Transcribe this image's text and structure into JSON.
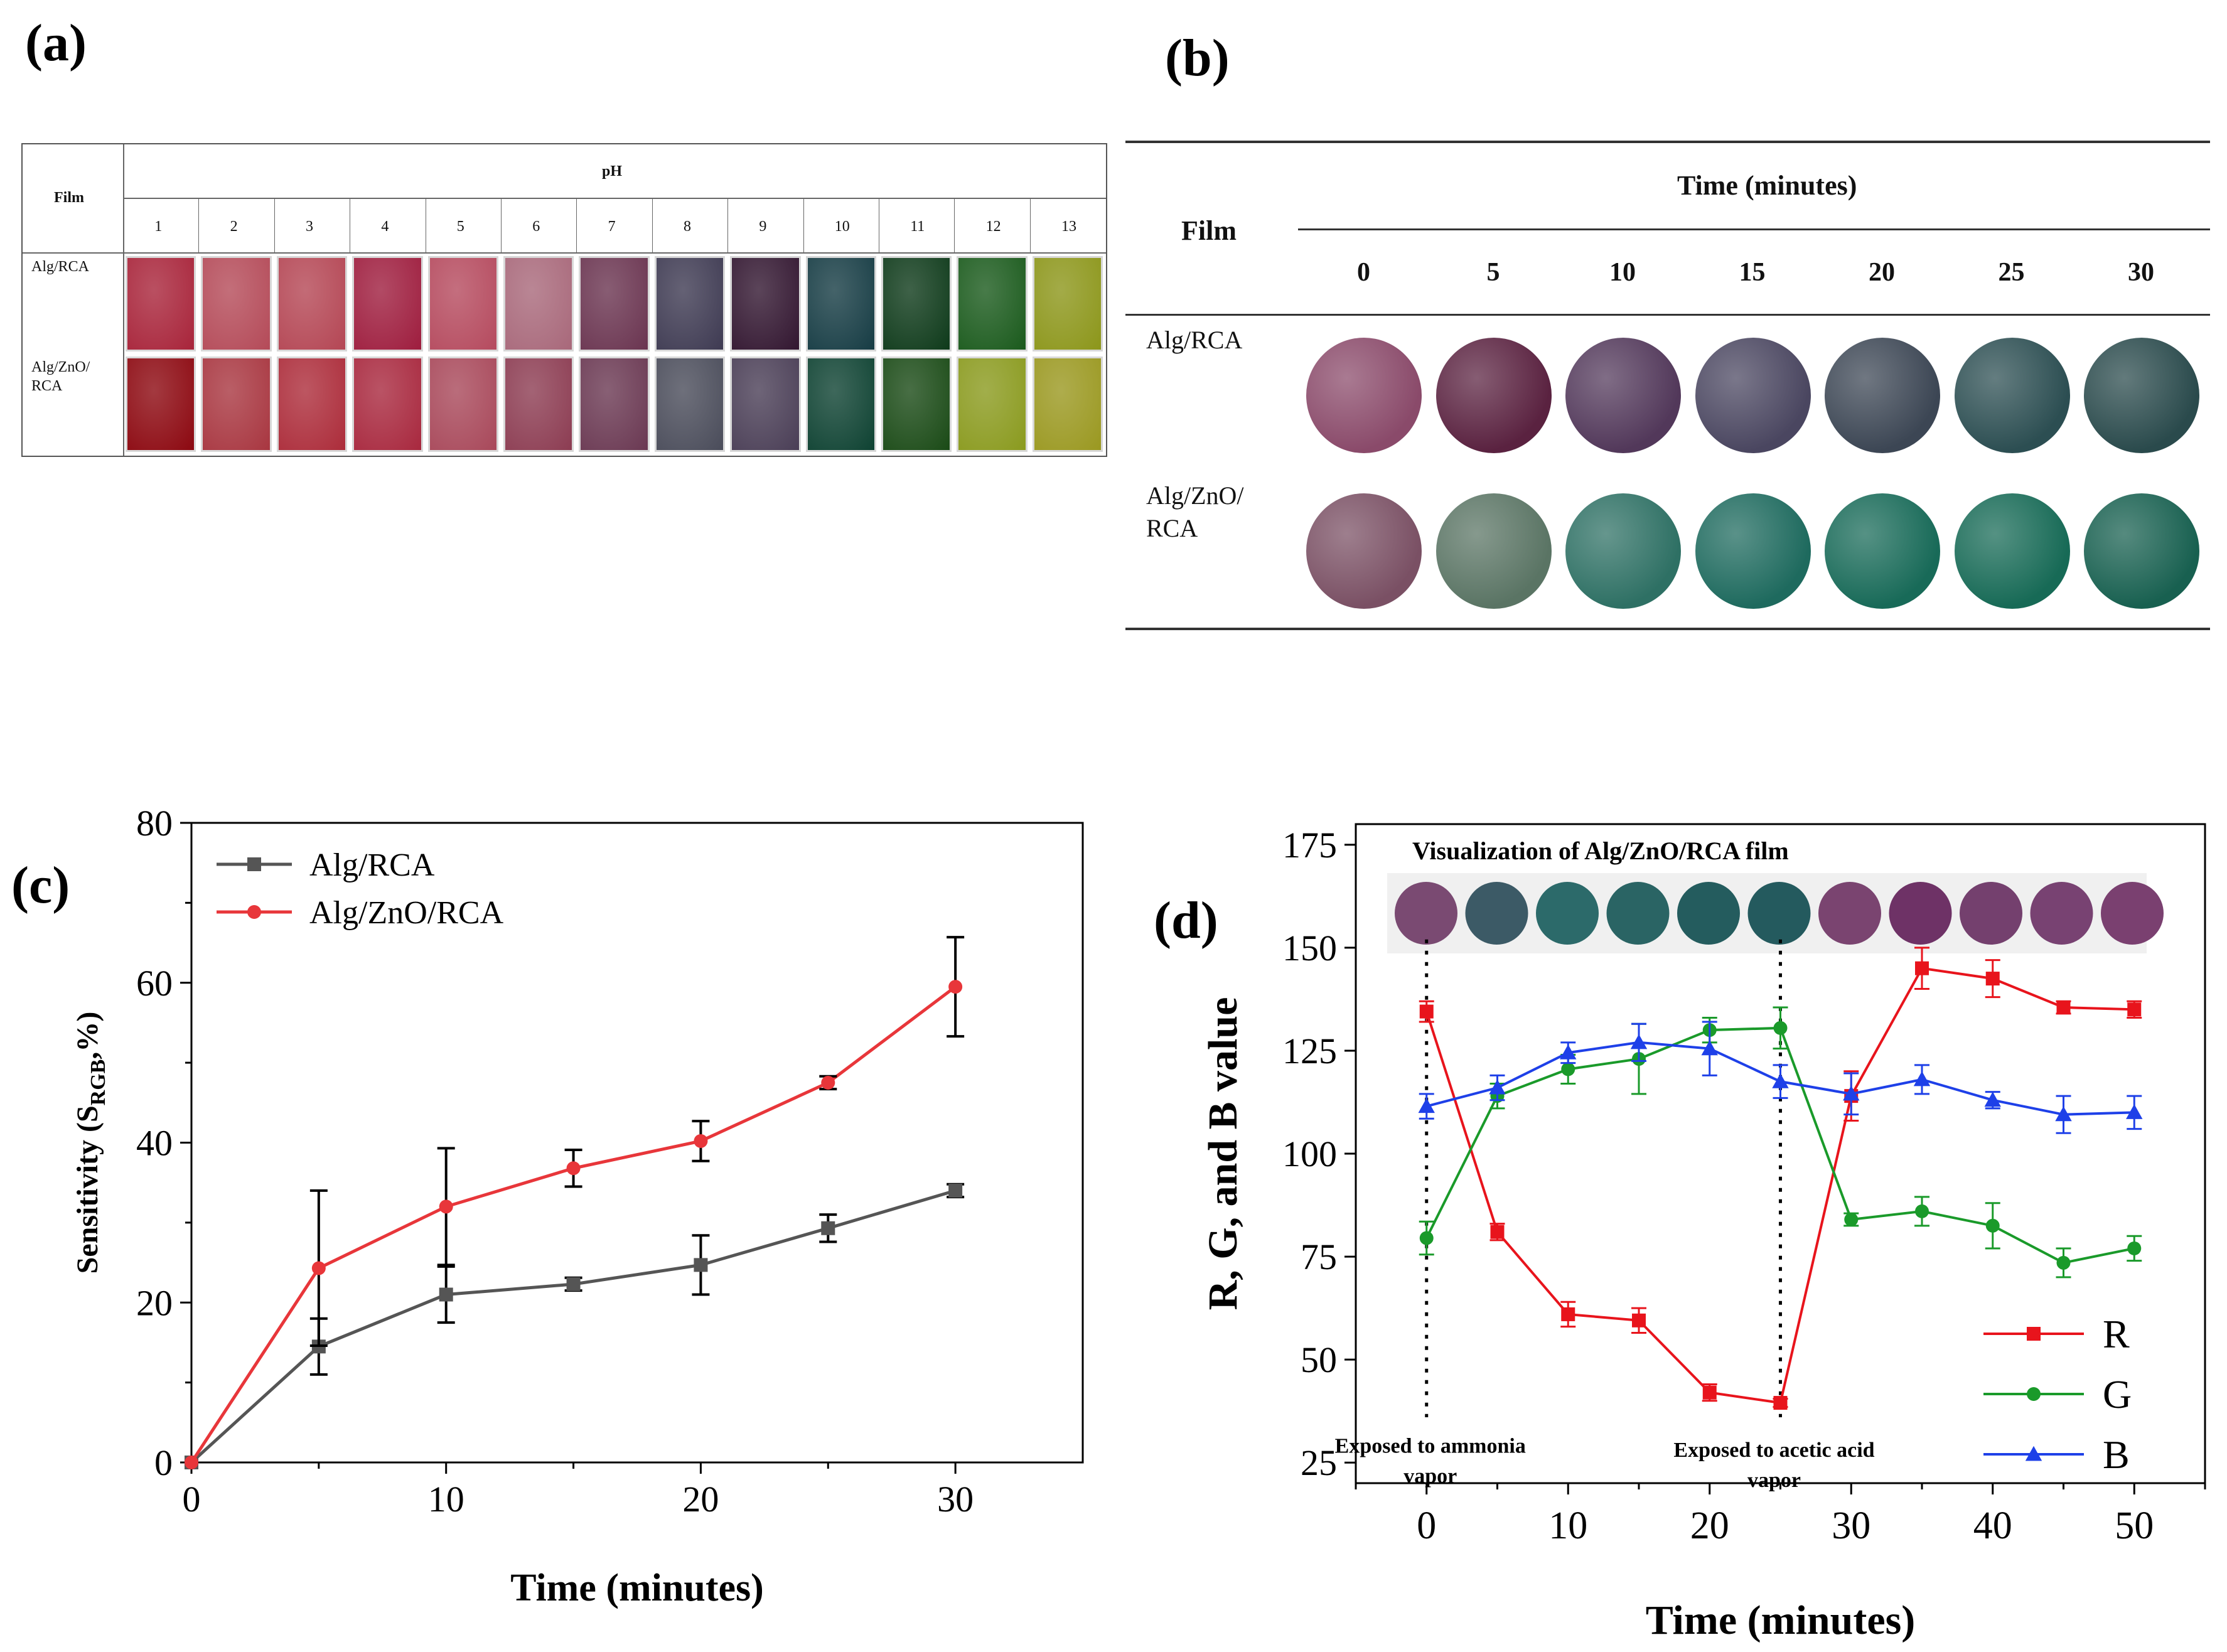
{
  "panel_a": {
    "letter": "(a)",
    "film_header": "Film",
    "ph_header": "pH",
    "columns": [
      "1",
      "2",
      "3",
      "4",
      "5",
      "6",
      "7",
      "8",
      "9",
      "10",
      "11",
      "12",
      "13"
    ],
    "rows": [
      {
        "label_line1": "Alg/RCA",
        "label_line2": "",
        "colors": [
          "#a8243a",
          "#b44a58",
          "#b44654",
          "#9e1d3e",
          "#b54a5e",
          "#a8687a",
          "#6a3450",
          "#3e3a52",
          "#321630",
          "#163c44",
          "#0e3a1a",
          "#1a5a1c",
          "#8c961a"
        ]
      },
      {
        "label_line1": "Alg/ZnO/",
        "label_line2": "RCA",
        "colors": [
          "#8c0810",
          "#a83640",
          "#ac2c3a",
          "#a8283e",
          "#a8485a",
          "#8c3c52",
          "#6a3852",
          "#4a4c5a",
          "#4a3e56",
          "#0e4232",
          "#1a4a16",
          "#8a9a1e",
          "#9a9820"
        ]
      }
    ]
  },
  "panel_b": {
    "letter": "(b)",
    "film_header": "Film",
    "time_header": "Time (minutes)",
    "columns": [
      "0",
      "5",
      "10",
      "15",
      "20",
      "25",
      "30"
    ],
    "rows": [
      {
        "label_line1": "Alg/RCA",
        "label_line2": "",
        "colors": [
          "#8a4a6a",
          "#5a2240",
          "#52385a",
          "#4a4660",
          "#3c4654",
          "#2c4e52",
          "#2a4a4c"
        ]
      },
      {
        "label_line1": "Alg/ZnO/",
        "label_line2": "RCA",
        "colors": [
          "#7a5064",
          "#5a7464",
          "#2e7064",
          "#1e6a5e",
          "#186a58",
          "#176a56",
          "#186050"
        ]
      }
    ]
  },
  "panel_c": {
    "letter": "(c)",
    "chart_data": {
      "type": "line",
      "xlabel": "Time (minutes)",
      "ylabel_main": "Sensitivity (S",
      "ylabel_sub": "RGB",
      "ylabel_end": ",%)",
      "xlim": [
        0,
        35
      ],
      "ylim": [
        0,
        80
      ],
      "xticks": [
        "0",
        "10",
        "20",
        "30"
      ],
      "yticks": [
        "0",
        "20",
        "40",
        "60",
        "80"
      ],
      "legend_position": "top-left",
      "series": [
        {
          "name": "Alg/RCA",
          "color": "#555555",
          "marker": "square",
          "x": [
            0,
            5,
            10,
            15,
            20,
            25,
            30
          ],
          "y": [
            0,
            14.5,
            21,
            22.3,
            24.7,
            29.3,
            34
          ],
          "err": [
            0,
            3.5,
            3.5,
            0.8,
            3.7,
            1.7,
            0.8
          ]
        },
        {
          "name": "Alg/ZnO/RCA",
          "color": "#e8363a",
          "marker": "circle",
          "x": [
            0,
            5,
            10,
            15,
            20,
            25,
            30
          ],
          "y": [
            0,
            24.3,
            32,
            36.8,
            40.2,
            47.5,
            59.5
          ],
          "err": [
            0,
            9.7,
            7.3,
            2.3,
            2.5,
            0.8,
            6.2
          ]
        }
      ]
    }
  },
  "panel_d": {
    "letter": "(d)",
    "inset_title": "Visualization of Alg/ZnO/RCA film",
    "inset_colors": [
      "#7a4a72",
      "#3c5a66",
      "#2c6a6a",
      "#2a6464",
      "#245c5e",
      "#245a5e",
      "#7a4470",
      "#6e3266",
      "#74406e",
      "#784272",
      "#7a4070"
    ],
    "annot_ammonia_line1": "Exposed to ammonia",
    "annot_ammonia_line2": "vapor",
    "annot_acetic_line1": "Exposed to acetic acid",
    "annot_acetic_line2": "vapor",
    "chart_data": {
      "type": "line",
      "xlabel": "Time (minutes)",
      "ylabel": "R, G, and B value",
      "xlim": [
        -5,
        55
      ],
      "ylim": [
        20,
        180
      ],
      "xticks": [
        "0",
        "10",
        "20",
        "30",
        "40",
        "50"
      ],
      "yticks": [
        "25",
        "50",
        "75",
        "100",
        "125",
        "150",
        "175"
      ],
      "legend_position": "bottom-right",
      "series": [
        {
          "name": "R",
          "color": "#e8141c",
          "marker": "square",
          "x": [
            0,
            5,
            10,
            15,
            20,
            25,
            30,
            35,
            40,
            45,
            50
          ],
          "y": [
            134.5,
            81,
            61,
            59.5,
            42,
            39.5,
            114,
            145,
            142.5,
            135.5,
            135
          ],
          "err": [
            2.5,
            2,
            3,
            3,
            2,
            1,
            6,
            5,
            4.5,
            1.5,
            2
          ]
        },
        {
          "name": "G",
          "color": "#1a9a2a",
          "marker": "circle",
          "x": [
            0,
            5,
            10,
            15,
            20,
            25,
            30,
            35,
            40,
            45,
            50
          ],
          "y": [
            79.5,
            114,
            120.5,
            123,
            130,
            130.5,
            84,
            86,
            82.5,
            73.5,
            77
          ],
          "err": [
            4,
            3,
            3.5,
            8.5,
            3,
            5,
            1.5,
            3.5,
            5.5,
            3.5,
            3
          ]
        },
        {
          "name": "B",
          "color": "#1e40e8",
          "marker": "triangle",
          "x": [
            0,
            5,
            10,
            15,
            20,
            25,
            30,
            35,
            40,
            45,
            50
          ],
          "y": [
            111.5,
            116,
            124.5,
            127,
            125.5,
            117.5,
            114.5,
            118,
            113,
            109.5,
            110
          ],
          "err": [
            3,
            3,
            2.5,
            4.5,
            6.5,
            4,
            5,
            3.5,
            2,
            4.5,
            4
          ]
        }
      ]
    }
  }
}
